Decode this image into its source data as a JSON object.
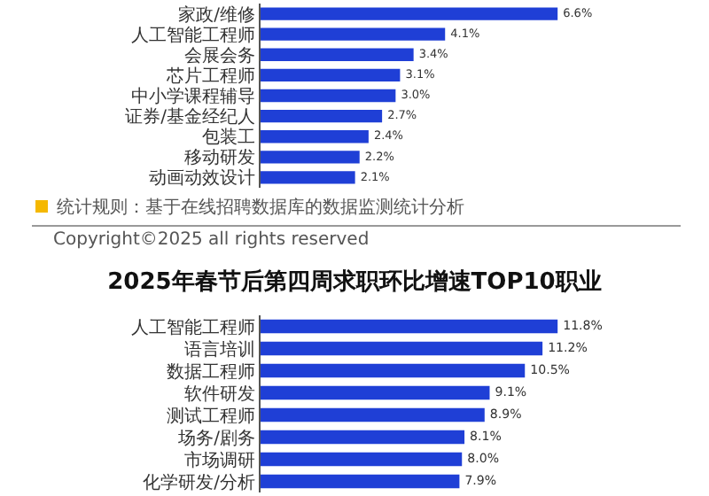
{
  "chart_data": [
    {
      "type": "bar",
      "orientation": "horizontal",
      "categories": [
        "家政/维修",
        "人工智能工程师",
        "会展会务",
        "芯片工程师",
        "中小学课程辅导",
        "证券/基金经纪人",
        "包装工",
        "移动研发",
        "动画动效设计"
      ],
      "values": [
        6.6,
        4.1,
        3.4,
        3.1,
        3.0,
        2.7,
        2.4,
        2.2,
        2.1
      ],
      "value_labels": [
        "6.6%",
        "4.1%",
        "3.4%",
        "3.1%",
        "3.0%",
        "2.7%",
        "2.4%",
        "2.2%",
        "2.1%"
      ],
      "color": "#1f3fd6",
      "annotations": [
        "统计规则：基于在线招聘数据库的数据监测统计分析",
        "Copyright©2025 all rights reserved"
      ]
    },
    {
      "type": "bar",
      "orientation": "horizontal",
      "title": "2025年春节后第四周求职环比增速TOP10职业",
      "categories": [
        "人工智能工程师",
        "语言培训",
        "数据工程师",
        "软件研发",
        "测试工程师",
        "场务/剧务",
        "市场调研",
        "化学研发/分析"
      ],
      "values": [
        11.8,
        11.2,
        10.5,
        9.1,
        8.9,
        8.1,
        8.0,
        7.9
      ],
      "value_labels": [
        "11.8%",
        "11.2%",
        "10.5%",
        "9.1%",
        "8.9%",
        "8.1%",
        "8.0%",
        "7.9%"
      ],
      "color": "#1f3fd6"
    }
  ]
}
